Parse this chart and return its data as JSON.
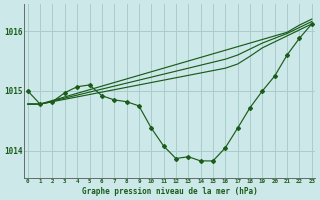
{
  "xlabel": "Graphe pression niveau de la mer (hPa)",
  "bg_color": "#cce8e8",
  "grid_color": "#aacccc",
  "line_color": "#1a5c1a",
  "x_ticks": [
    0,
    1,
    2,
    3,
    4,
    5,
    6,
    7,
    8,
    9,
    10,
    11,
    12,
    13,
    14,
    15,
    16,
    17,
    18,
    19,
    20,
    21,
    22,
    23
  ],
  "y_ticks": [
    1014,
    1015,
    1016
  ],
  "ylim": [
    1013.55,
    1016.45
  ],
  "xlim": [
    -0.3,
    23.3
  ],
  "series": {
    "diagonal_top": [
      1014.78,
      1014.78,
      1014.84,
      1014.9,
      1014.96,
      1015.02,
      1015.08,
      1015.14,
      1015.2,
      1015.26,
      1015.32,
      1015.38,
      1015.44,
      1015.5,
      1015.56,
      1015.62,
      1015.68,
      1015.74,
      1015.8,
      1015.86,
      1015.92,
      1015.98,
      1016.1,
      1016.2
    ],
    "diagonal_mid1": [
      1014.78,
      1014.78,
      1014.83,
      1014.88,
      1014.93,
      1014.98,
      1015.03,
      1015.08,
      1015.13,
      1015.18,
      1015.23,
      1015.28,
      1015.33,
      1015.38,
      1015.43,
      1015.48,
      1015.53,
      1015.6,
      1015.7,
      1015.8,
      1015.88,
      1015.96,
      1016.06,
      1016.16
    ],
    "diagonal_mid2": [
      1014.78,
      1014.78,
      1014.82,
      1014.86,
      1014.9,
      1014.94,
      1014.98,
      1015.02,
      1015.06,
      1015.1,
      1015.14,
      1015.18,
      1015.22,
      1015.26,
      1015.3,
      1015.34,
      1015.38,
      1015.45,
      1015.58,
      1015.72,
      1015.82,
      1015.92,
      1016.02,
      1016.12
    ],
    "markers": [
      1015.0,
      1014.78,
      1014.82,
      1014.97,
      1015.07,
      1015.1,
      1014.92,
      1014.85,
      1014.82,
      1014.75,
      1014.38,
      1014.08,
      1013.87,
      1013.9,
      1013.83,
      1013.83,
      1014.05,
      1014.38,
      1014.72,
      1015.0,
      1015.25,
      1015.6,
      1015.88,
      1016.12
    ]
  },
  "marker_style": "D",
  "marker_size": 2.0
}
